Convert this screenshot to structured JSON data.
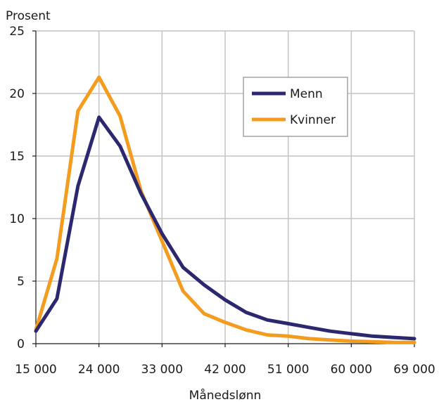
{
  "chart_data": {
    "type": "line",
    "title": "",
    "ylabel": "Prosent",
    "xlabel": "Månedslønn",
    "xlim": [
      15000,
      69000
    ],
    "ylim": [
      0,
      25
    ],
    "grid": true,
    "legend_position": "upper-right",
    "x_ticks": [
      15000,
      24000,
      33000,
      42000,
      51000,
      60000,
      69000
    ],
    "x_tick_labels": [
      "15 000",
      "24 000",
      "33 000",
      "42 000",
      "51 000",
      "60 000",
      "69 000"
    ],
    "y_ticks": [
      0,
      5,
      10,
      15,
      20,
      25
    ],
    "y_tick_labels": [
      "0",
      "5",
      "10",
      "15",
      "20",
      "25"
    ],
    "x": [
      15000,
      18000,
      21000,
      24000,
      27000,
      30000,
      33000,
      36000,
      39000,
      42000,
      45000,
      48000,
      51000,
      54000,
      57000,
      60000,
      63000,
      66000,
      69000
    ],
    "series": [
      {
        "name": "Menn",
        "color": "#2b2870",
        "values": [
          1.0,
          3.6,
          12.6,
          18.1,
          15.8,
          12.0,
          8.8,
          6.1,
          4.7,
          3.5,
          2.5,
          1.9,
          1.6,
          1.3,
          1.0,
          0.8,
          0.6,
          0.5,
          0.4
        ]
      },
      {
        "name": "Kvinner",
        "color": "#f39c1f",
        "values": [
          1.1,
          6.8,
          18.6,
          21.3,
          18.2,
          12.2,
          8.2,
          4.2,
          2.4,
          1.7,
          1.1,
          0.7,
          0.6,
          0.4,
          0.3,
          0.2,
          0.15,
          0.1,
          0.1
        ]
      }
    ]
  }
}
